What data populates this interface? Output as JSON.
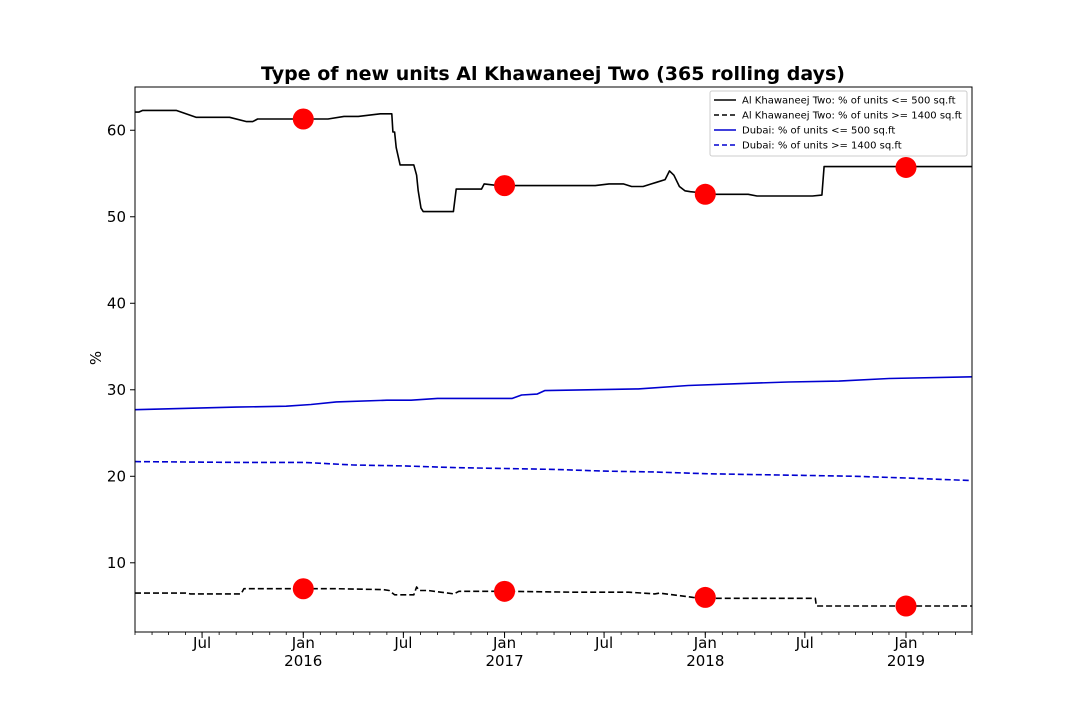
{
  "chart_data": {
    "type": "line",
    "title": "Type of new units Al Khawaneej Two (365 rolling days)",
    "xlabel": "",
    "ylabel": "%",
    "xlim": [
      "2015-03-01",
      "2019-05-01"
    ],
    "ylim": [
      2,
      65
    ],
    "yticks": [
      10,
      20,
      30,
      40,
      50,
      60
    ],
    "xticks": [
      {
        "date": "2015-07-01",
        "label": "Jul",
        "sub": ""
      },
      {
        "date": "2016-01-01",
        "label": "Jan",
        "sub": "2016"
      },
      {
        "date": "2016-07-01",
        "label": "Jul",
        "sub": ""
      },
      {
        "date": "2017-01-01",
        "label": "Jan",
        "sub": "2017"
      },
      {
        "date": "2017-07-01",
        "label": "Jul",
        "sub": ""
      },
      {
        "date": "2018-01-01",
        "label": "Jan",
        "sub": "2018"
      },
      {
        "date": "2018-07-01",
        "label": "Jul",
        "sub": ""
      },
      {
        "date": "2019-01-01",
        "label": "Jan",
        "sub": "2019"
      }
    ],
    "grid": false,
    "legend_position": "top-right",
    "series": [
      {
        "name": "Al Khawaneej Two: % of units <= 500 sq.ft",
        "color": "#000000",
        "dash": "solid",
        "x": [
          "2015-03-01",
          "2015-03-08",
          "2015-03-15",
          "2015-04-15",
          "2015-05-05",
          "2015-05-15",
          "2015-06-20",
          "2015-08-20",
          "2015-09-20",
          "2015-10-01",
          "2015-10-10",
          "2016-02-15",
          "2016-03-15",
          "2016-04-10",
          "2016-05-20",
          "2016-06-01",
          "2016-06-10",
          "2016-06-12",
          "2016-06-15",
          "2016-06-18",
          "2016-06-25",
          "2016-07-20",
          "2016-07-25",
          "2016-07-28",
          "2016-08-02",
          "2016-08-06",
          "2016-08-10",
          "2016-09-30",
          "2016-10-05",
          "2016-11-20",
          "2016-11-25",
          "2016-12-20",
          "2017-01-10",
          "2017-03-20",
          "2017-04-10",
          "2017-05-10",
          "2017-06-15",
          "2017-07-10",
          "2017-08-05",
          "2017-08-20",
          "2017-09-10",
          "2017-09-25",
          "2017-10-05",
          "2017-10-20",
          "2017-10-28",
          "2017-11-05",
          "2017-11-15",
          "2017-11-25",
          "2017-12-05",
          "2017-12-20",
          "2018-01-10",
          "2018-01-20",
          "2018-03-20",
          "2018-04-05",
          "2018-07-15",
          "2018-08-01",
          "2018-08-05",
          "2019-01-01",
          "2019-05-01"
        ],
        "values": [
          62.1,
          62.1,
          62.3,
          62.3,
          62.3,
          62.3,
          61.5,
          61.5,
          61.0,
          61.0,
          61.3,
          61.3,
          61.6,
          61.6,
          61.9,
          61.9,
          61.9,
          59.8,
          59.8,
          58.0,
          56.0,
          56.0,
          54.8,
          53.0,
          51.0,
          50.6,
          50.6,
          50.6,
          53.2,
          53.2,
          53.8,
          53.6,
          53.6,
          53.6,
          53.6,
          53.6,
          53.6,
          53.8,
          53.8,
          53.5,
          53.5,
          53.8,
          54.0,
          54.3,
          55.3,
          54.8,
          53.5,
          53.0,
          52.9,
          52.8,
          52.8,
          52.6,
          52.6,
          52.4,
          52.4,
          52.5,
          55.8,
          55.8,
          55.8
        ]
      },
      {
        "name": "Al Khawaneej Two: % of units >= 1400 sq.ft",
        "color": "#000000",
        "dash": "dashed",
        "x": [
          "2015-03-01",
          "2015-06-01",
          "2015-06-10",
          "2015-09-10",
          "2015-09-15",
          "2016-01-01",
          "2016-03-01",
          "2016-05-25",
          "2016-06-05",
          "2016-06-15",
          "2016-07-20",
          "2016-07-25",
          "2016-07-30",
          "2016-08-15",
          "2016-10-01",
          "2016-10-10",
          "2017-01-01",
          "2017-05-10",
          "2017-06-01",
          "2017-08-15",
          "2017-10-01",
          "2017-10-10",
          "2017-12-10",
          "2018-01-01",
          "2018-03-01",
          "2018-04-01",
          "2018-06-01",
          "2018-07-20",
          "2018-07-22",
          "2019-01-01",
          "2019-05-01"
        ],
        "values": [
          6.5,
          6.5,
          6.4,
          6.4,
          7.0,
          7.0,
          7.0,
          6.9,
          6.8,
          6.3,
          6.3,
          7.2,
          6.8,
          6.8,
          6.4,
          6.7,
          6.7,
          6.6,
          6.6,
          6.6,
          6.4,
          6.5,
          6.0,
          5.9,
          5.9,
          5.9,
          5.9,
          5.9,
          5.0,
          5.0,
          5.0
        ]
      },
      {
        "name": "Dubai: % of units <= 500 sq.ft",
        "color": "#0000d0",
        "dash": "solid",
        "x": [
          "2015-03-01",
          "2015-05-01",
          "2015-09-01",
          "2015-12-01",
          "2016-01-15",
          "2016-03-01",
          "2016-06-01",
          "2016-07-15",
          "2016-09-01",
          "2016-11-01",
          "2017-01-15",
          "2017-02-01",
          "2017-03-01",
          "2017-03-15",
          "2017-06-01",
          "2017-09-01",
          "2017-12-01",
          "2018-03-01",
          "2018-06-01",
          "2018-09-01",
          "2018-12-01",
          "2019-05-01"
        ],
        "values": [
          27.7,
          27.8,
          28.0,
          28.1,
          28.3,
          28.6,
          28.8,
          28.8,
          29.0,
          29.0,
          29.0,
          29.4,
          29.5,
          29.9,
          30.0,
          30.1,
          30.5,
          30.7,
          30.9,
          31.0,
          31.3,
          31.5
        ]
      },
      {
        "name": "Dubai: % of units >= 1400 sq.ft",
        "color": "#0000d0",
        "dash": "dashed",
        "x": [
          "2015-03-01",
          "2015-09-01",
          "2016-01-01",
          "2016-04-01",
          "2016-07-01",
          "2016-10-01",
          "2017-01-01",
          "2017-04-01",
          "2017-07-01",
          "2017-10-01",
          "2018-01-01",
          "2018-04-01",
          "2018-07-01",
          "2018-10-01",
          "2019-01-01",
          "2019-05-01"
        ],
        "values": [
          21.7,
          21.6,
          21.6,
          21.3,
          21.2,
          21.0,
          20.9,
          20.8,
          20.6,
          20.5,
          20.3,
          20.2,
          20.1,
          20.0,
          19.8,
          19.5
        ]
      }
    ],
    "markers": {
      "color": "#ff0000",
      "points": [
        {
          "x": "2016-01-01",
          "y": 61.3
        },
        {
          "x": "2017-01-01",
          "y": 53.6
        },
        {
          "x": "2018-01-01",
          "y": 52.6
        },
        {
          "x": "2019-01-01",
          "y": 55.7
        },
        {
          "x": "2016-01-01",
          "y": 7.0
        },
        {
          "x": "2017-01-01",
          "y": 6.7
        },
        {
          "x": "2018-01-01",
          "y": 6.0
        },
        {
          "x": "2019-01-01",
          "y": 5.0
        }
      ]
    }
  }
}
